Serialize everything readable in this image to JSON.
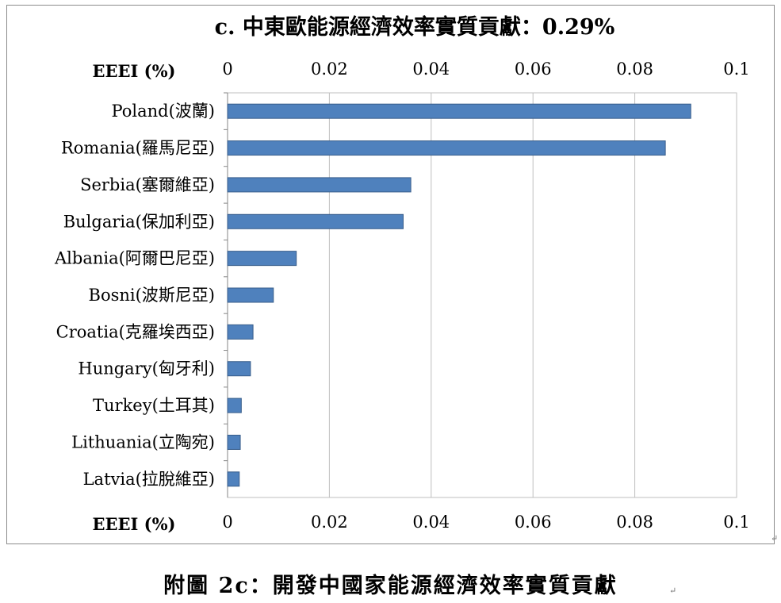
{
  "chart_data": {
    "type": "bar",
    "orientation": "horizontal",
    "title": "c. 中東歐能源經濟效率實質貢獻：0.29%",
    "xlabel": "EEEI (%)",
    "xlim": [
      0,
      0.1
    ],
    "xticks": [
      "0",
      "0.02",
      "0.04",
      "0.06",
      "0.08",
      "0.1"
    ],
    "tick_values": [
      0,
      0.02,
      0.04,
      0.06,
      0.08,
      0.1
    ],
    "axis_position": "top and bottom",
    "grid": true,
    "bar_color": "#4F81BD",
    "bar_edge_color": "#385D8A",
    "categories": [
      "Poland(波蘭)",
      "Romania(羅馬尼亞)",
      "Serbia(塞爾維亞)",
      "Bulgaria(保加利亞)",
      "Albania(阿爾巴尼亞)",
      "Bosni(波斯尼亞)",
      "Croatia(克羅埃西亞)",
      "Hungary(匈牙利)",
      "Turkey(土耳其)",
      "Lithuania(立陶宛)",
      "Latvia(拉脫維亞)"
    ],
    "values": [
      0.091,
      0.086,
      0.036,
      0.0345,
      0.0135,
      0.009,
      0.005,
      0.0045,
      0.0027,
      0.0025,
      0.0023
    ]
  },
  "caption": "附圖 2c：開發中國家能源經濟效率實質貢獻",
  "paragraph_mark": "↵"
}
